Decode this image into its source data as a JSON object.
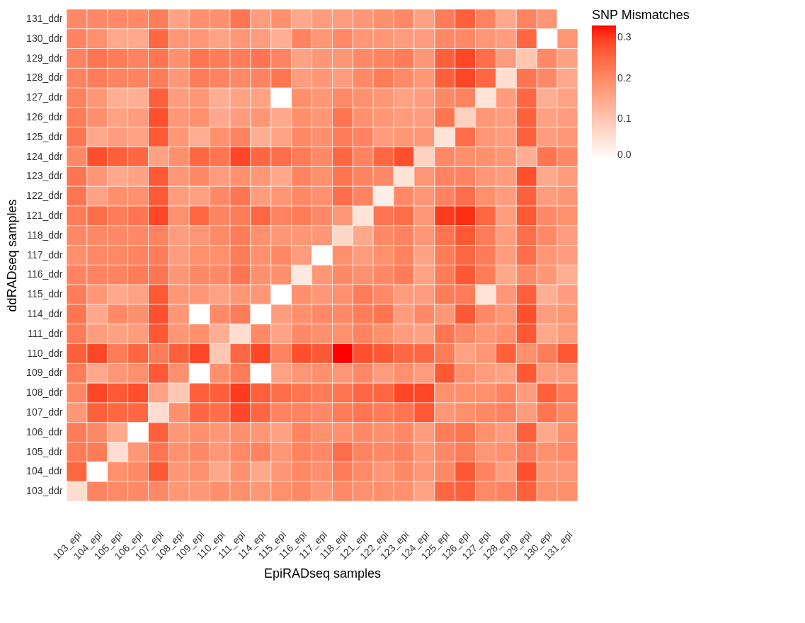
{
  "chart_data": {
    "type": "heatmap",
    "xlabel": "EpiRADseq samples",
    "ylabel": "ddRADseq samples",
    "clabel": "SNP Mismatches",
    "categories": [
      "103_epi",
      "104_epi",
      "105_epi",
      "106_epi",
      "107_epi",
      "108_epi",
      "109_epi",
      "110_epi",
      "111_epi",
      "114_epi",
      "115_epi",
      "116_epi",
      "117_epi",
      "118_epi",
      "121_epi",
      "122_epi",
      "123_epi",
      "124_epi",
      "125_epi",
      "126_epi",
      "127_epi",
      "128_epi",
      "129_epi",
      "130_epi",
      "131_epi"
    ],
    "y_categories": [
      "131_ddr",
      "130_ddr",
      "129_ddr",
      "128_ddr",
      "127_ddr",
      "126_ddr",
      "125_ddr",
      "124_ddr",
      "123_ddr",
      "122_ddr",
      "121_ddr",
      "118_ddr",
      "117_ddr",
      "116_ddr",
      "115_ddr",
      "114_ddr",
      "111_ddr",
      "110_ddr",
      "109_ddr",
      "108_ddr",
      "107_ddr",
      "106_ddr",
      "105_ddr",
      "104_ddr",
      "103_ddr"
    ],
    "cells": [
      [
        0.2,
        0.2,
        0.2,
        0.2,
        0.22,
        0.16,
        0.19,
        0.19,
        0.23,
        0.17,
        0.19,
        0.15,
        0.17,
        0.17,
        0.18,
        0.19,
        0.2,
        0.16,
        0.22,
        0.26,
        0.21,
        0.15,
        0.21,
        0.18,
        0
      ],
      [
        0.21,
        0.19,
        0.15,
        0.15,
        0.25,
        0.18,
        0.18,
        0.16,
        0.18,
        0.17,
        0.14,
        0.21,
        0.18,
        0.2,
        0.18,
        0.18,
        0.17,
        0.17,
        0.2,
        0.2,
        0.18,
        0.17,
        0.25,
        0,
        0.18
      ],
      [
        0.21,
        0.23,
        0.22,
        0.21,
        0.23,
        0.19,
        0.23,
        0.22,
        0.22,
        0.23,
        0.21,
        0.16,
        0.18,
        0.18,
        0.2,
        0.21,
        0.22,
        0.18,
        0.26,
        0.29,
        0.24,
        0.17,
        0.1,
        0.2,
        0.16
      ],
      [
        0.21,
        0.22,
        0.21,
        0.21,
        0.22,
        0.18,
        0.22,
        0.21,
        0.2,
        0.21,
        0.23,
        0.17,
        0.18,
        0.17,
        0.2,
        0.22,
        0.2,
        0.18,
        0.26,
        0.29,
        0.25,
        0.06,
        0.23,
        0.2,
        0.15
      ],
      [
        0.21,
        0.18,
        0.14,
        0.14,
        0.26,
        0.17,
        0.18,
        0.14,
        0.16,
        0.16,
        0,
        0.19,
        0.18,
        0.2,
        0.19,
        0.18,
        0.16,
        0.17,
        0.2,
        0.21,
        0.05,
        0.17,
        0.25,
        0.14,
        0.16
      ],
      [
        0.22,
        0.19,
        0.16,
        0.17,
        0.28,
        0.18,
        0.19,
        0.15,
        0.17,
        0.18,
        0.15,
        0.19,
        0.18,
        0.23,
        0.19,
        0.18,
        0.17,
        0.17,
        0.23,
        0.08,
        0.18,
        0.17,
        0.26,
        0.16,
        0.17
      ],
      [
        0.23,
        0.15,
        0.17,
        0.16,
        0.27,
        0.18,
        0.14,
        0.19,
        0.21,
        0.14,
        0.16,
        0.2,
        0.19,
        0.22,
        0.21,
        0.17,
        0.18,
        0.18,
        0.05,
        0.24,
        0.18,
        0.17,
        0.26,
        0.17,
        0.18
      ],
      [
        0.2,
        0.28,
        0.26,
        0.25,
        0.16,
        0.19,
        0.25,
        0.23,
        0.29,
        0.25,
        0.24,
        0.22,
        0.2,
        0.25,
        0.21,
        0.25,
        0.28,
        0.08,
        0.2,
        0.19,
        0.19,
        0.18,
        0.14,
        0.23,
        0.2
      ],
      [
        0.23,
        0.18,
        0.15,
        0.16,
        0.27,
        0.18,
        0.2,
        0.17,
        0.19,
        0.18,
        0.15,
        0.21,
        0.19,
        0.23,
        0.21,
        0.2,
        0.05,
        0.18,
        0.21,
        0.21,
        0.18,
        0.17,
        0.28,
        0.15,
        0.17
      ],
      [
        0.23,
        0.16,
        0.19,
        0.19,
        0.27,
        0.17,
        0.16,
        0.2,
        0.23,
        0.17,
        0.18,
        0.2,
        0.19,
        0.24,
        0.21,
        0.03,
        0.2,
        0.18,
        0.21,
        0.24,
        0.19,
        0.17,
        0.26,
        0.17,
        0.18
      ],
      [
        0.22,
        0.24,
        0.22,
        0.23,
        0.29,
        0.19,
        0.25,
        0.21,
        0.22,
        0.25,
        0.21,
        0.22,
        0.2,
        0.18,
        0.05,
        0.23,
        0.24,
        0.18,
        0.3,
        0.31,
        0.25,
        0.17,
        0.27,
        0.2,
        0.19
      ],
      [
        0.2,
        0.2,
        0.2,
        0.2,
        0.21,
        0.17,
        0.18,
        0.2,
        0.22,
        0.19,
        0.18,
        0.18,
        0.18,
        0.07,
        0.15,
        0.2,
        0.21,
        0.18,
        0.23,
        0.27,
        0.22,
        0.17,
        0.24,
        0.2,
        0.17
      ],
      [
        0.19,
        0.2,
        0.2,
        0.21,
        0.22,
        0.17,
        0.19,
        0.19,
        0.22,
        0.19,
        0.2,
        0.17,
        0,
        0.19,
        0.17,
        0.19,
        0.21,
        0.16,
        0.22,
        0.25,
        0.22,
        0.17,
        0.24,
        0.18,
        0.17
      ],
      [
        0.21,
        0.21,
        0.21,
        0.22,
        0.23,
        0.18,
        0.2,
        0.2,
        0.23,
        0.19,
        0.19,
        0.04,
        0.18,
        0.2,
        0.19,
        0.2,
        0.22,
        0.16,
        0.22,
        0.27,
        0.22,
        0.15,
        0.2,
        0.18,
        0.14
      ],
      [
        0.22,
        0.18,
        0.15,
        0.16,
        0.27,
        0.18,
        0.18,
        0.16,
        0.18,
        0.18,
        0,
        0.19,
        0.18,
        0.19,
        0.22,
        0.2,
        0.17,
        0.17,
        0.22,
        0.22,
        0.05,
        0.18,
        0.26,
        0.14,
        0.17
      ],
      [
        0.23,
        0.15,
        0.2,
        0.19,
        0.28,
        0.18,
        0,
        0.2,
        0.22,
        0,
        0.17,
        0.19,
        0.2,
        0.2,
        0.22,
        0.23,
        0.17,
        0.2,
        0.18,
        0.27,
        0.2,
        0.18,
        0.28,
        0.17,
        0.18
      ],
      [
        0.22,
        0.17,
        0.16,
        0.17,
        0.27,
        0.18,
        0.19,
        0.14,
        0.06,
        0.2,
        0.16,
        0.2,
        0.19,
        0.19,
        0.21,
        0.19,
        0.17,
        0.16,
        0.23,
        0.2,
        0.18,
        0.19,
        0.27,
        0.15,
        0.17
      ],
      [
        0.26,
        0.29,
        0.22,
        0.25,
        0.22,
        0.26,
        0.29,
        0.1,
        0.25,
        0.29,
        0.21,
        0.28,
        0.27,
        0.33,
        0.28,
        0.27,
        0.25,
        0.25,
        0.22,
        0.16,
        0.18,
        0.26,
        0.19,
        0.22,
        0.27
      ],
      [
        0.22,
        0.15,
        0.18,
        0.19,
        0.27,
        0.19,
        0,
        0.19,
        0.22,
        0,
        0.16,
        0.18,
        0.19,
        0.18,
        0.2,
        0.17,
        0.19,
        0.17,
        0.27,
        0.19,
        0.17,
        0.16,
        0.27,
        0.17,
        0.17
      ],
      [
        0.2,
        0.29,
        0.27,
        0.28,
        0.16,
        0.1,
        0.26,
        0.26,
        0.3,
        0.26,
        0.24,
        0.23,
        0.22,
        0.23,
        0.25,
        0.25,
        0.29,
        0.29,
        0.19,
        0.19,
        0.19,
        0.21,
        0.17,
        0.26,
        0.22
      ],
      [
        0.18,
        0.26,
        0.25,
        0.25,
        0.06,
        0.19,
        0.25,
        0.24,
        0.29,
        0.25,
        0.21,
        0.21,
        0.2,
        0.22,
        0.23,
        0.22,
        0.23,
        0.27,
        0.18,
        0.19,
        0.2,
        0.21,
        0.17,
        0.23,
        0.2
      ],
      [
        0.22,
        0.2,
        0.15,
        0,
        0.26,
        0.18,
        0.19,
        0.18,
        0.19,
        0.18,
        0.16,
        0.21,
        0.19,
        0.19,
        0.2,
        0.19,
        0.2,
        0.17,
        0.22,
        0.23,
        0.19,
        0.17,
        0.26,
        0.15,
        0.19
      ],
      [
        0.22,
        0.22,
        0.06,
        0.18,
        0.23,
        0.19,
        0.2,
        0.18,
        0.2,
        0.21,
        0.18,
        0.21,
        0.2,
        0.24,
        0.21,
        0.2,
        0.21,
        0.18,
        0.2,
        0.22,
        0.18,
        0.19,
        0.22,
        0.19,
        0.2
      ],
      [
        0.25,
        0,
        0.19,
        0.2,
        0.27,
        0.18,
        0.19,
        0.15,
        0.19,
        0.15,
        0.18,
        0.2,
        0.19,
        0.22,
        0.2,
        0.18,
        0.2,
        0.18,
        0.2,
        0.27,
        0.21,
        0.17,
        0.28,
        0.18,
        0.18
      ],
      [
        0.06,
        0.21,
        0.2,
        0.2,
        0.2,
        0.18,
        0.18,
        0.19,
        0.19,
        0.18,
        0.19,
        0.2,
        0.18,
        0.2,
        0.19,
        0.19,
        0.19,
        0.16,
        0.25,
        0.26,
        0.2,
        0.21,
        0.26,
        0.19,
        0.19
      ]
    ],
    "clim": [
      0,
      0.33
    ],
    "cticks": [
      {
        "value": 0,
        "label": "0.0"
      },
      {
        "value": 0.1,
        "label": "0.1"
      },
      {
        "value": 0.2,
        "label": "0.2"
      },
      {
        "value": 0.3,
        "label": "0.3"
      }
    ]
  }
}
